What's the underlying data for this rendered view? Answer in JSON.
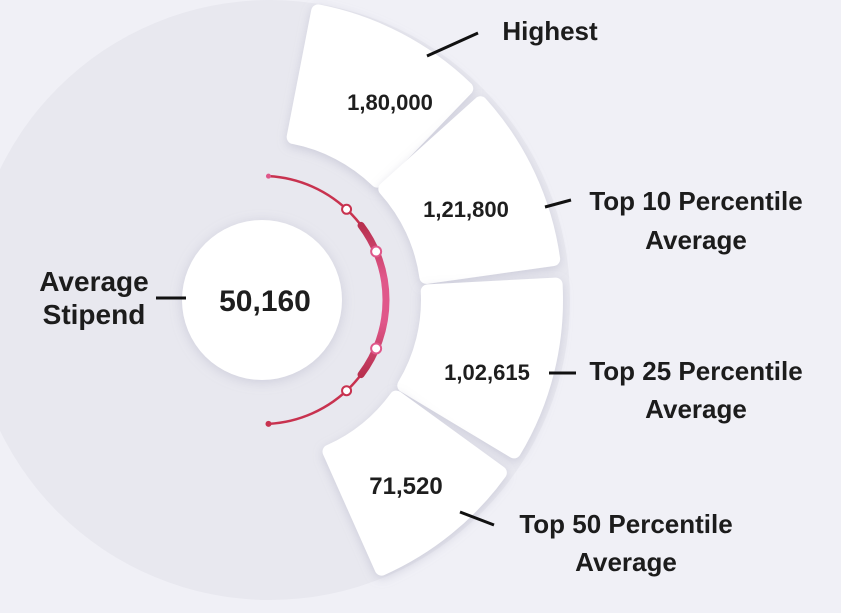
{
  "chart_data": {
    "type": "radial-segments",
    "center": {
      "label": "Average Stipend",
      "value": "50,160"
    },
    "segments": [
      {
        "label": "Highest",
        "value": "1,80,000",
        "numeric": 180000
      },
      {
        "label": "Top 10 Percentile Average",
        "value": "1,21,800",
        "numeric": 121800
      },
      {
        "label": "Top 25 Percentile Average",
        "value": "1,02,615",
        "numeric": 102615
      },
      {
        "label": "Top 50 Percentile Average",
        "value": "71,520",
        "numeric": 71520
      }
    ],
    "text": {
      "center_value": "50,160",
      "center_label_line1": "Average",
      "center_label_line2": "Stipend",
      "seg1_value": "1,80,000",
      "seg1_label": "Highest",
      "seg2_value": "1,21,800",
      "seg2_label_line1": "Top 10 Percentile",
      "seg2_label_line2": "Average",
      "seg3_value": "1,02,615",
      "seg3_label_line1": "Top 25 Percentile",
      "seg3_label_line2": "Average",
      "seg4_value": "71,520",
      "seg4_label_line1": "Top 50 Percentile",
      "seg4_label_line2": "Average"
    }
  },
  "colors": {
    "background": "#f0f0f6",
    "ring": "#e7e7ee",
    "segment": "#ffffff",
    "accent_pink": "#e0578a",
    "accent_red": "#c8324f",
    "text": "#1c1c1c"
  }
}
